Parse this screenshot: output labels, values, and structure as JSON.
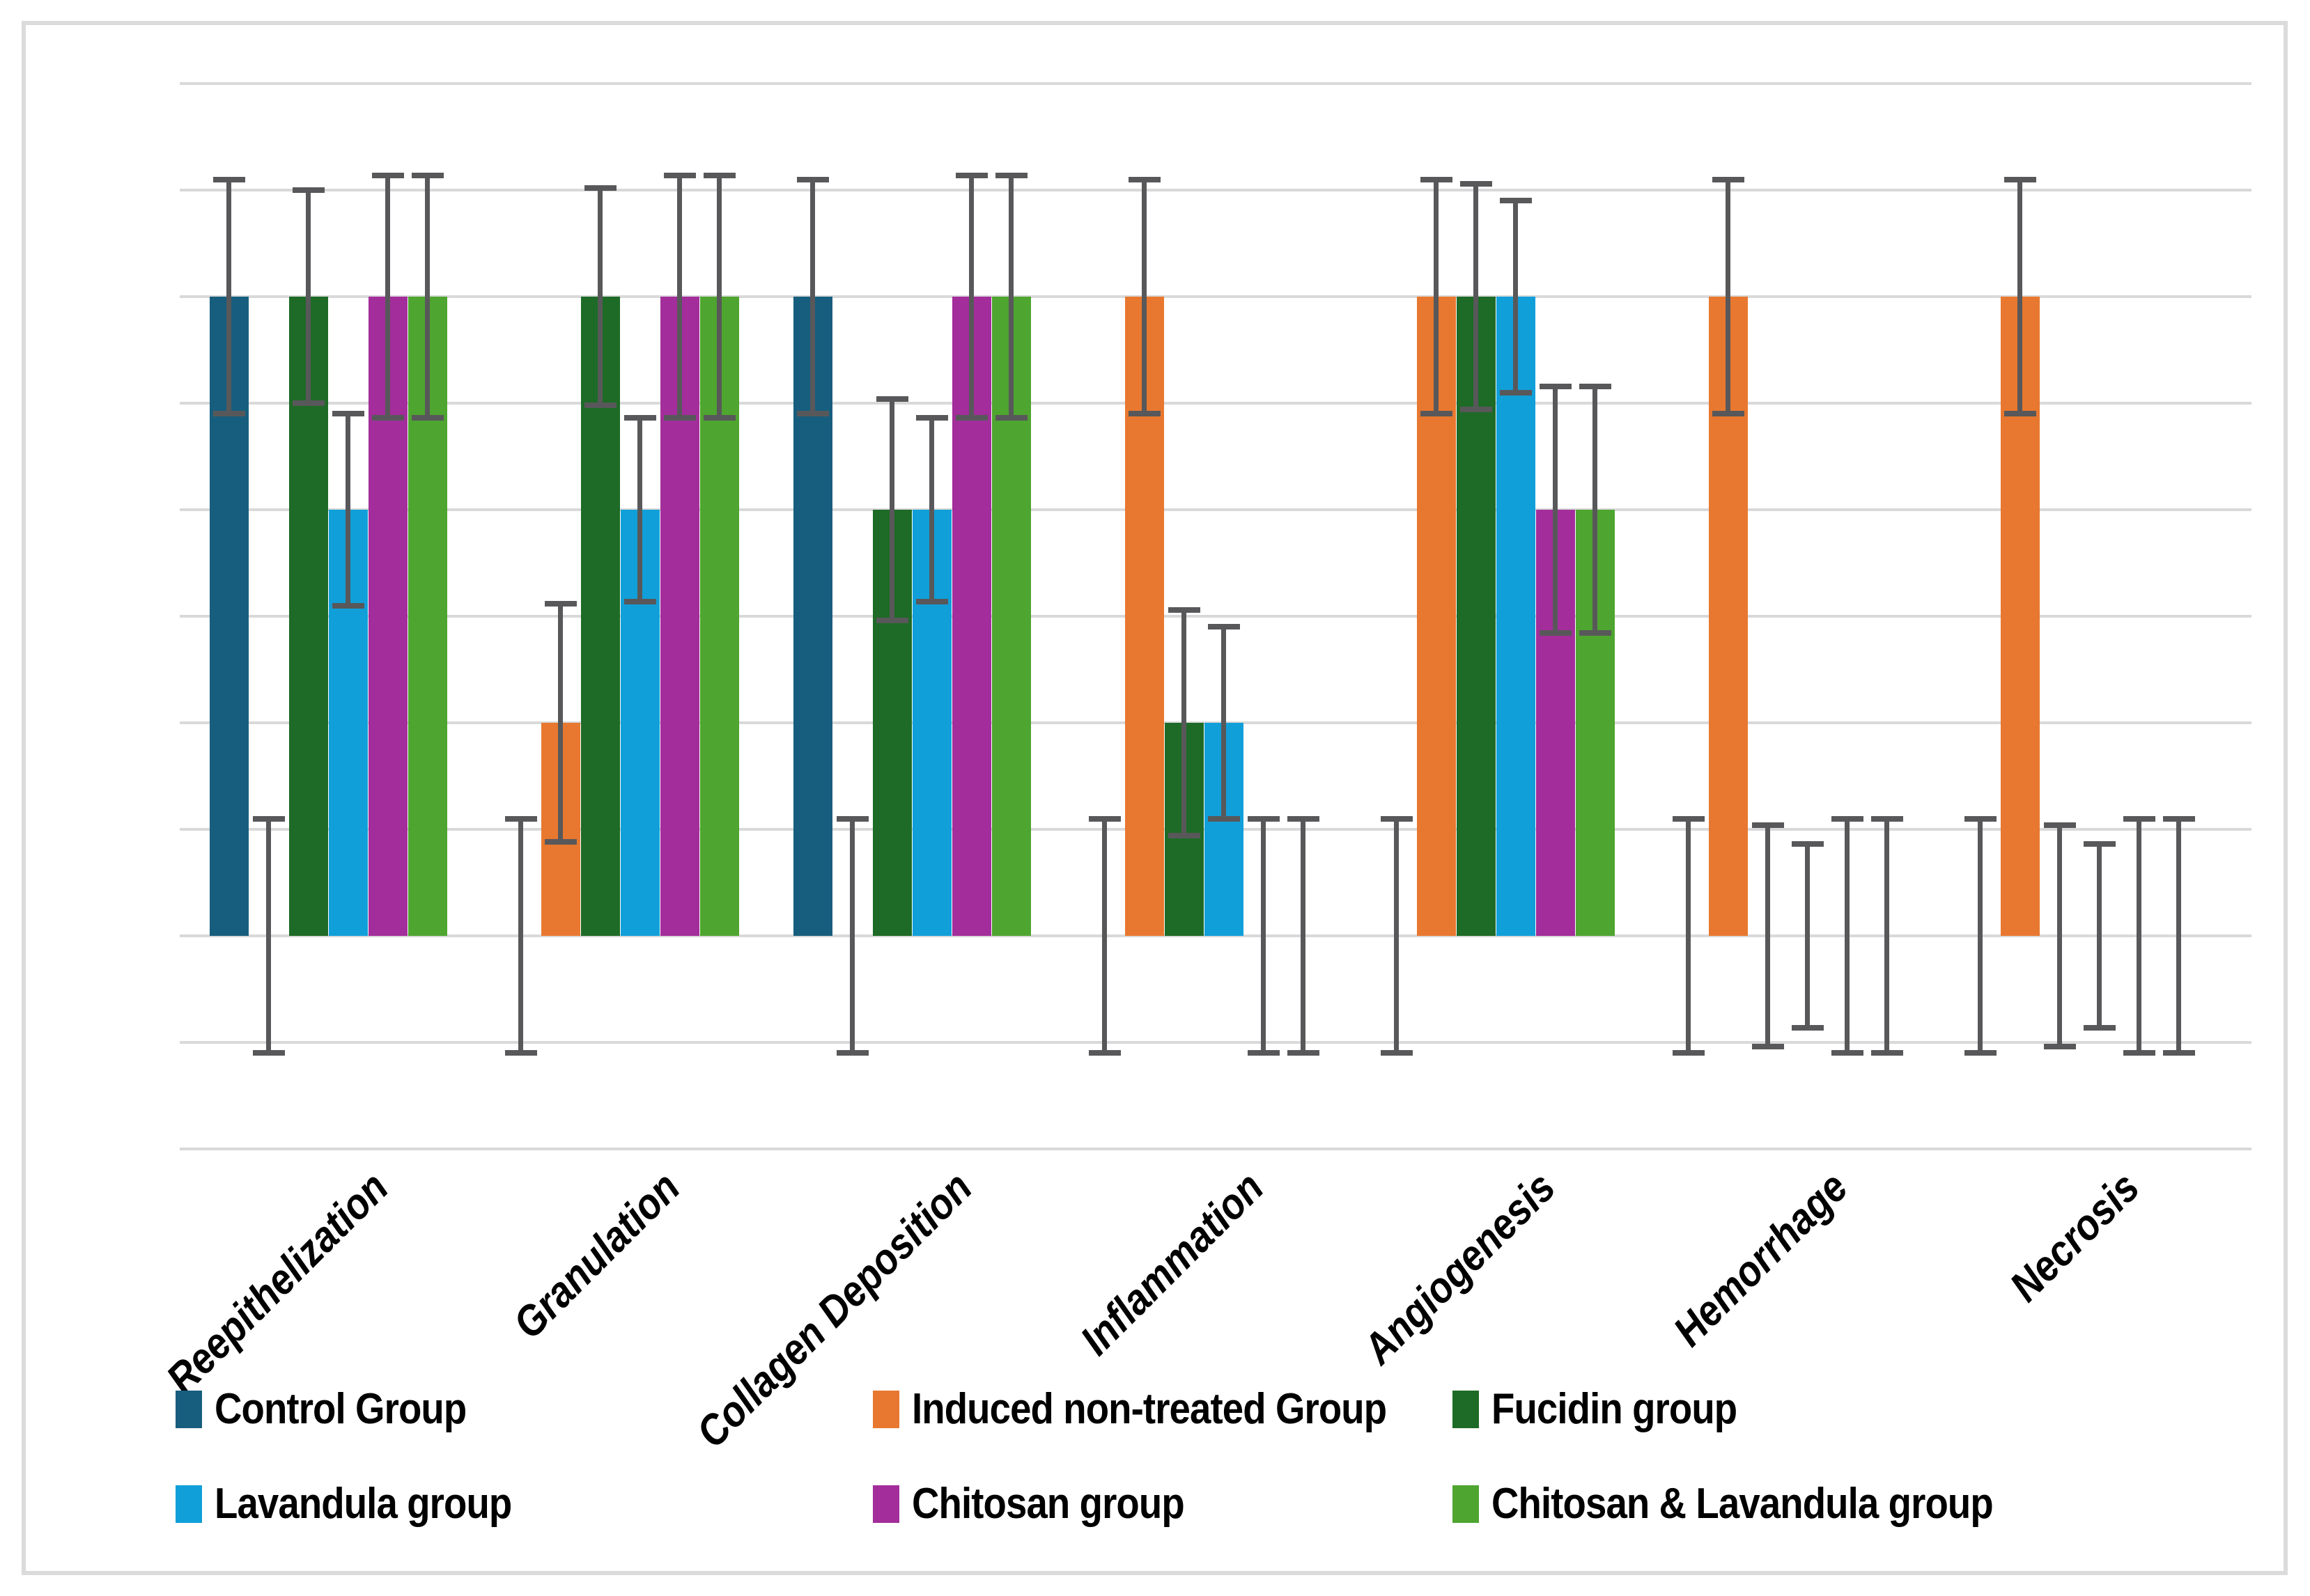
{
  "frame": {
    "background": "#FFFFFF",
    "border_color": "#DBDBDB"
  },
  "chart_data": {
    "type": "bar",
    "title": "",
    "xlabel": "",
    "ylabel": "",
    "categories": [
      "Reepithelization",
      "Granulation",
      "Collagen Deposition",
      "Inflammation",
      "Angiogenesis",
      "Hemorrhage",
      "Necrosis"
    ],
    "series": [
      {
        "name": "Control Group",
        "color": "#175E7E",
        "values": [
          3,
          0,
          3,
          0,
          0,
          0,
          0
        ],
        "errors": [
          0.55,
          0.55,
          0.55,
          0.55,
          0.55,
          0.55,
          0.55
        ]
      },
      {
        "name": "Induced non-treated Group",
        "color": "#E8782F",
        "values": [
          0,
          1,
          0,
          3,
          3,
          3,
          3
        ],
        "errors": [
          0.55,
          0.56,
          0.55,
          0.55,
          0.55,
          0.55,
          0.55
        ]
      },
      {
        "name": "Fucidin group",
        "color": "#1D6B26",
        "values": [
          3,
          3,
          2,
          1,
          3,
          0,
          0
        ],
        "errors": [
          0.5,
          0.51,
          0.52,
          0.53,
          0.53,
          0.52,
          0.52
        ]
      },
      {
        "name": "Lavandula group",
        "color": "#119FD9",
        "values": [
          2,
          2,
          2,
          1,
          3,
          0,
          0
        ],
        "errors": [
          0.45,
          0.43,
          0.43,
          0.45,
          0.45,
          0.43,
          0.43
        ]
      },
      {
        "name": "Chitosan group",
        "color": "#A32E9B",
        "values": [
          3,
          3,
          3,
          0,
          2,
          0,
          0
        ],
        "errors": [
          0.57,
          0.57,
          0.57,
          0.55,
          0.58,
          0.55,
          0.55
        ]
      },
      {
        "name": "Chitosan & Lavandula group",
        "color": "#4EA52F",
        "values": [
          3,
          3,
          3,
          0,
          2,
          0,
          0
        ],
        "errors": [
          0.57,
          0.57,
          0.57,
          0.55,
          0.58,
          0.55,
          0.55
        ]
      }
    ],
    "ylim": [
      -1.0,
      4.0
    ],
    "gridline_step": 0.5,
    "grid": "on",
    "y_axis_tick_labels_visible": false,
    "category_label_rotation_deg": 45,
    "legend_position": "bottom",
    "legend_rows": 2,
    "legend_columns": 3,
    "error_bar_color": "#58585A",
    "gridline_color": "#D9D9D9"
  }
}
